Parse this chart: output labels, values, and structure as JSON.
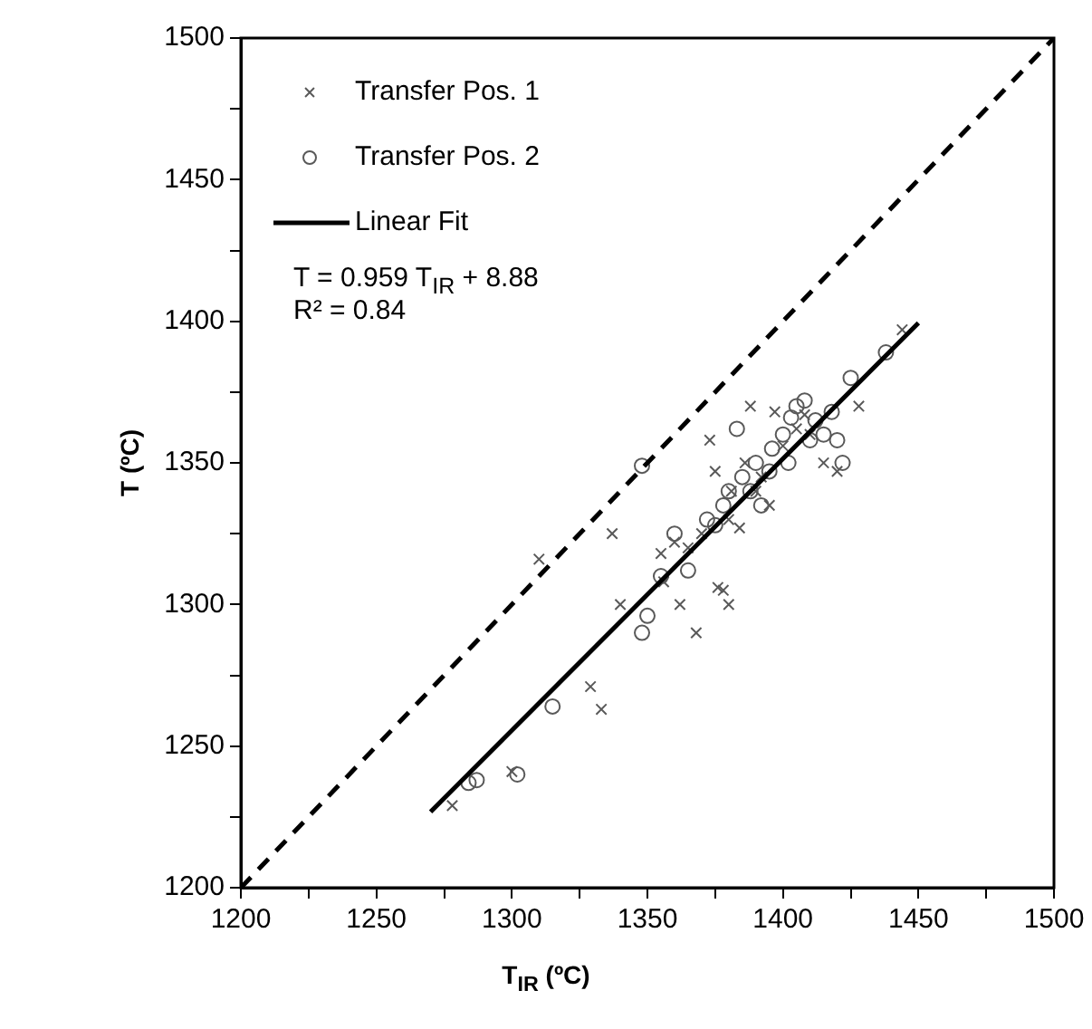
{
  "chart_data": {
    "type": "scatter",
    "xlabel": "T$_{IR}$ (ºC)",
    "ylabel": "T (ºC)",
    "xlim": [
      1200,
      1500
    ],
    "ylim": [
      1200,
      1500
    ],
    "xticks": [
      1200,
      {
        "value": 1225,
        "label": null
      },
      1250,
      {
        "value": 1275,
        "label": null
      },
      1300,
      {
        "value": 1325,
        "label": null
      },
      1350,
      {
        "value": 1375,
        "label": null
      },
      1400,
      {
        "value": 1425,
        "label": null
      },
      1450,
      {
        "value": 1475,
        "label": null
      },
      1500
    ],
    "yticks": [
      1200,
      {
        "value": 1225,
        "label": null
      },
      1250,
      {
        "value": 1275,
        "label": null
      },
      1300,
      {
        "value": 1325,
        "label": null
      },
      1350,
      {
        "value": 1375,
        "label": null
      },
      1400,
      {
        "value": 1425,
        "label": null
      },
      1450,
      {
        "value": 1475,
        "label": null
      },
      1500
    ],
    "grid": false,
    "legend": "top left",
    "annotations": [
      "T = 0.959 T$_{IR}$ + 8.88",
      "R² = 0.84"
    ],
    "series": [
      {
        "name": "Transfer Pos. 1",
        "marker": "cross",
        "color": "#595959",
        "x": [
          1278,
          1300,
          1310,
          1329,
          1333,
          1337,
          1340,
          1356,
          1360,
          1362,
          1368,
          1370,
          1373,
          1375,
          1376,
          1378,
          1380,
          1381,
          1384,
          1386,
          1388,
          1390,
          1392,
          1397,
          1400,
          1405,
          1408,
          1410,
          1415,
          1420,
          1428,
          1444,
          1365,
          1380,
          1395,
          1355
        ],
        "values": [
          1229,
          1241,
          1316,
          1271,
          1263,
          1325,
          1300,
          1308,
          1322,
          1300,
          1290,
          1325,
          1358,
          1347,
          1306,
          1305,
          1300,
          1340,
          1327,
          1350,
          1370,
          1340,
          1345,
          1368,
          1356,
          1362,
          1367,
          1360,
          1350,
          1347,
          1370,
          1397,
          1320,
          1330,
          1335,
          1318
        ]
      },
      {
        "name": "Transfer Pos. 2",
        "marker": "circle",
        "color": "#595959",
        "x": [
          1284,
          1287,
          1302,
          1315,
          1348,
          1350,
          1348,
          1355,
          1365,
          1372,
          1378,
          1380,
          1383,
          1385,
          1388,
          1390,
          1392,
          1396,
          1400,
          1402,
          1405,
          1408,
          1410,
          1412,
          1415,
          1418,
          1420,
          1422,
          1425,
          1438,
          1395,
          1375,
          1360,
          1403
        ],
        "values": [
          1237,
          1238,
          1240,
          1264,
          1290,
          1296,
          1349,
          1310,
          1312,
          1330,
          1335,
          1340,
          1362,
          1345,
          1340,
          1350,
          1335,
          1355,
          1360,
          1350,
          1370,
          1372,
          1358,
          1365,
          1360,
          1368,
          1358,
          1350,
          1380,
          1389,
          1347,
          1328,
          1325,
          1366
        ]
      },
      {
        "name": "Linear Fit",
        "type": "line",
        "marker": "none",
        "line_style": "solid",
        "color": "#000000",
        "x": [
          1270,
          1450
        ],
        "values": [
          1226.8,
          1399.4
        ]
      },
      {
        "type": "line",
        "marker": "none",
        "line_style": "dashed",
        "color": "#000000",
        "x": [
          1200,
          1500
        ],
        "values": [
          1200,
          1500
        ]
      }
    ]
  }
}
